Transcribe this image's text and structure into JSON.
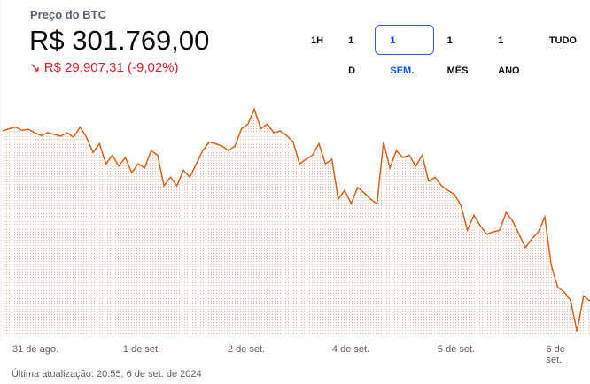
{
  "header": {
    "title": "Preço do BTC",
    "price": "R$ 301.769,00",
    "change": "R$ 29.907,31 (-9,02%)"
  },
  "ranges": {
    "buttons": [
      "1H",
      "1 D",
      "1 SEM.",
      "1 MÊS",
      "1 ANO",
      "TUDO"
    ],
    "selected": 2
  },
  "chart_data": {
    "type": "line",
    "color": "#d6621e",
    "values": [
      331200,
      331600,
      331900,
      331300,
      331500,
      330900,
      330400,
      330900,
      330600,
      330300,
      330900,
      330100,
      331900,
      330100,
      327500,
      329000,
      325500,
      327000,
      325100,
      326600,
      324000,
      325500,
      324800,
      327800,
      327000,
      321700,
      323200,
      321700,
      324400,
      323200,
      325500,
      327800,
      329300,
      329000,
      328600,
      327800,
      328600,
      331600,
      332400,
      335000,
      331600,
      332400,
      330900,
      331200,
      330400,
      329300,
      325500,
      326300,
      327000,
      329000,
      325500,
      326300,
      319400,
      320900,
      318600,
      321400,
      320500,
      319400,
      318600,
      329300,
      324800,
      327800,
      326600,
      327000,
      325100,
      327000,
      322500,
      323200,
      321700,
      320900,
      320200,
      318300,
      314000,
      316600,
      314800,
      313300,
      313700,
      314000,
      317100,
      315600,
      313300,
      311000,
      312500,
      313700,
      316300,
      307900,
      304100,
      303300,
      301800,
      296400,
      302600,
      301769
    ],
    "ylim": [
      295000,
      337500
    ],
    "x_labels": [
      "31 de ago.",
      "1 de set.",
      "2 de set.",
      "4 de set.",
      "5 de set.",
      "6 de set."
    ]
  },
  "footer": "Última atualização: 20:55, 6 de set. de 2024"
}
